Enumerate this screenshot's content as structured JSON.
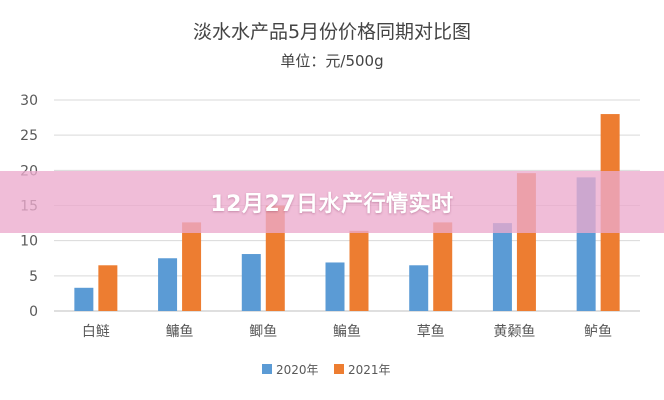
{
  "chart_data": {
    "type": "bar",
    "title": "淡水水产品5月份价格同期对比图",
    "subtitle": "单位：元/500g",
    "categories": [
      "白鲢",
      "鳙鱼",
      "鲫鱼",
      "鳊鱼",
      "草鱼",
      "黄颡鱼",
      "鲈鱼"
    ],
    "series": [
      {
        "name": "2020年",
        "color": "#5B9BD5",
        "values": [
          3.3,
          7.5,
          8.1,
          6.9,
          6.5,
          12.5,
          19.0
        ]
      },
      {
        "name": "2021年",
        "color": "#ED7D31",
        "values": [
          6.5,
          12.6,
          15.0,
          11.4,
          12.6,
          19.6,
          28.0
        ]
      }
    ],
    "ylim": [
      0,
      30
    ],
    "yticks": [
      0,
      5,
      10,
      15,
      20,
      25,
      30
    ],
    "grid": true,
    "legend_position": "bottom-center"
  },
  "banner": {
    "text": "12月27日水产行情实时"
  }
}
